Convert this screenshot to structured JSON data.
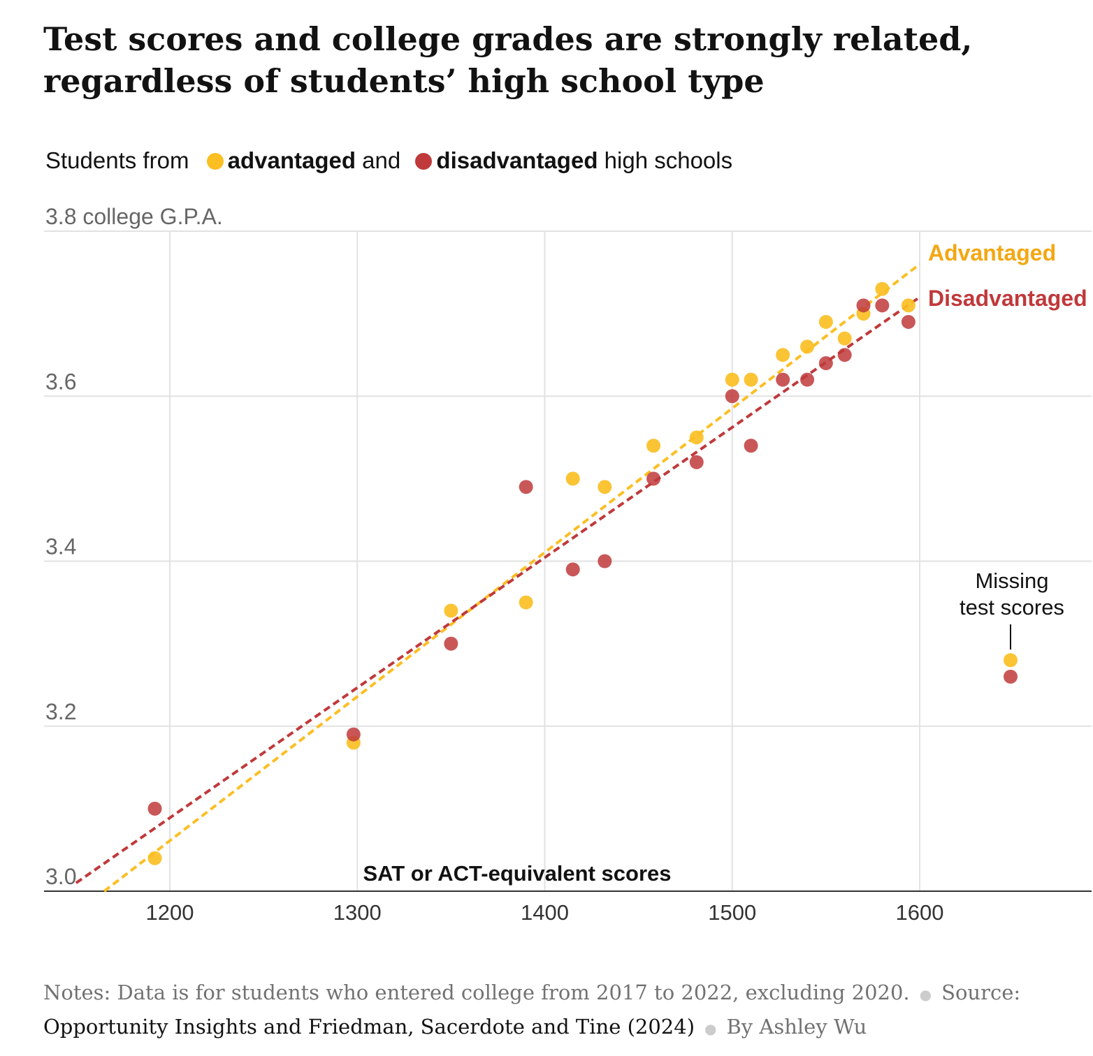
{
  "title": "Test scores and college grades are strongly related, regardless of students’ high school type",
  "legend": {
    "prefix": "Students from",
    "advantaged": "advantaged",
    "and": "and",
    "disadvantaged": "disadvantaged",
    "suffix": "high schools"
  },
  "colors": {
    "advantaged": "#fbbf24",
    "disadvantaged": "#c0393b",
    "adv_label": "#f4a712",
    "dis_label": "#c0393b"
  },
  "chart_data": {
    "type": "scatter",
    "xlabel": "SAT or ACT-equivalent scores",
    "ylabel": "college G.P.A.",
    "xlim": [
      1133,
      1690
    ],
    "ylim": [
      3.0,
      3.8
    ],
    "xticks": [
      1200,
      1300,
      1400,
      1500,
      1600
    ],
    "yticks": [
      3.0,
      3.2,
      3.4,
      3.6,
      3.8
    ],
    "ytick_labels": [
      "3.0",
      "3.2",
      "3.4",
      "3.6",
      "3.8 college G.P.A."
    ],
    "grid": true,
    "series": [
      {
        "name": "Advantaged",
        "color": "#fbbf24",
        "points": [
          [
            1192,
            3.04
          ],
          [
            1298,
            3.18
          ],
          [
            1350,
            3.34
          ],
          [
            1390,
            3.35
          ],
          [
            1415,
            3.5
          ],
          [
            1432,
            3.49
          ],
          [
            1458,
            3.54
          ],
          [
            1481,
            3.55
          ],
          [
            1500,
            3.62
          ],
          [
            1510,
            3.62
          ],
          [
            1527,
            3.65
          ],
          [
            1540,
            3.66
          ],
          [
            1550,
            3.69
          ],
          [
            1560,
            3.67
          ],
          [
            1570,
            3.7
          ],
          [
            1580,
            3.73
          ],
          [
            1594,
            3.71
          ]
        ],
        "trend": [
          [
            1165,
            3.0
          ],
          [
            1600,
            3.76
          ]
        ]
      },
      {
        "name": "Disadvantaged",
        "color": "#c0393b",
        "points": [
          [
            1192,
            3.1
          ],
          [
            1298,
            3.19
          ],
          [
            1350,
            3.3
          ],
          [
            1390,
            3.49
          ],
          [
            1415,
            3.39
          ],
          [
            1432,
            3.4
          ],
          [
            1458,
            3.5
          ],
          [
            1481,
            3.52
          ],
          [
            1500,
            3.6
          ],
          [
            1510,
            3.54
          ],
          [
            1527,
            3.62
          ],
          [
            1540,
            3.62
          ],
          [
            1550,
            3.64
          ],
          [
            1560,
            3.65
          ],
          [
            1570,
            3.71
          ],
          [
            1580,
            3.71
          ],
          [
            1594,
            3.69
          ]
        ],
        "trend": [
          [
            1150,
            3.01
          ],
          [
            1600,
            3.72
          ]
        ]
      }
    ],
    "missing": {
      "label_line1": "Missing",
      "label_line2": "test scores",
      "advantaged": 3.28,
      "disadvantaged": 3.26
    },
    "annotations": {
      "advantaged": "Advantaged",
      "disadvantaged": "Disadvantaged"
    }
  },
  "notes": {
    "text": "Notes: Data is for students who entered college from 2017 to 2022, excluding 2020.",
    "source_label": "Source:",
    "source": "Opportunity Insights and Friedman, Sacerdote and Tine (2024)",
    "byline": "By Ashley Wu"
  }
}
